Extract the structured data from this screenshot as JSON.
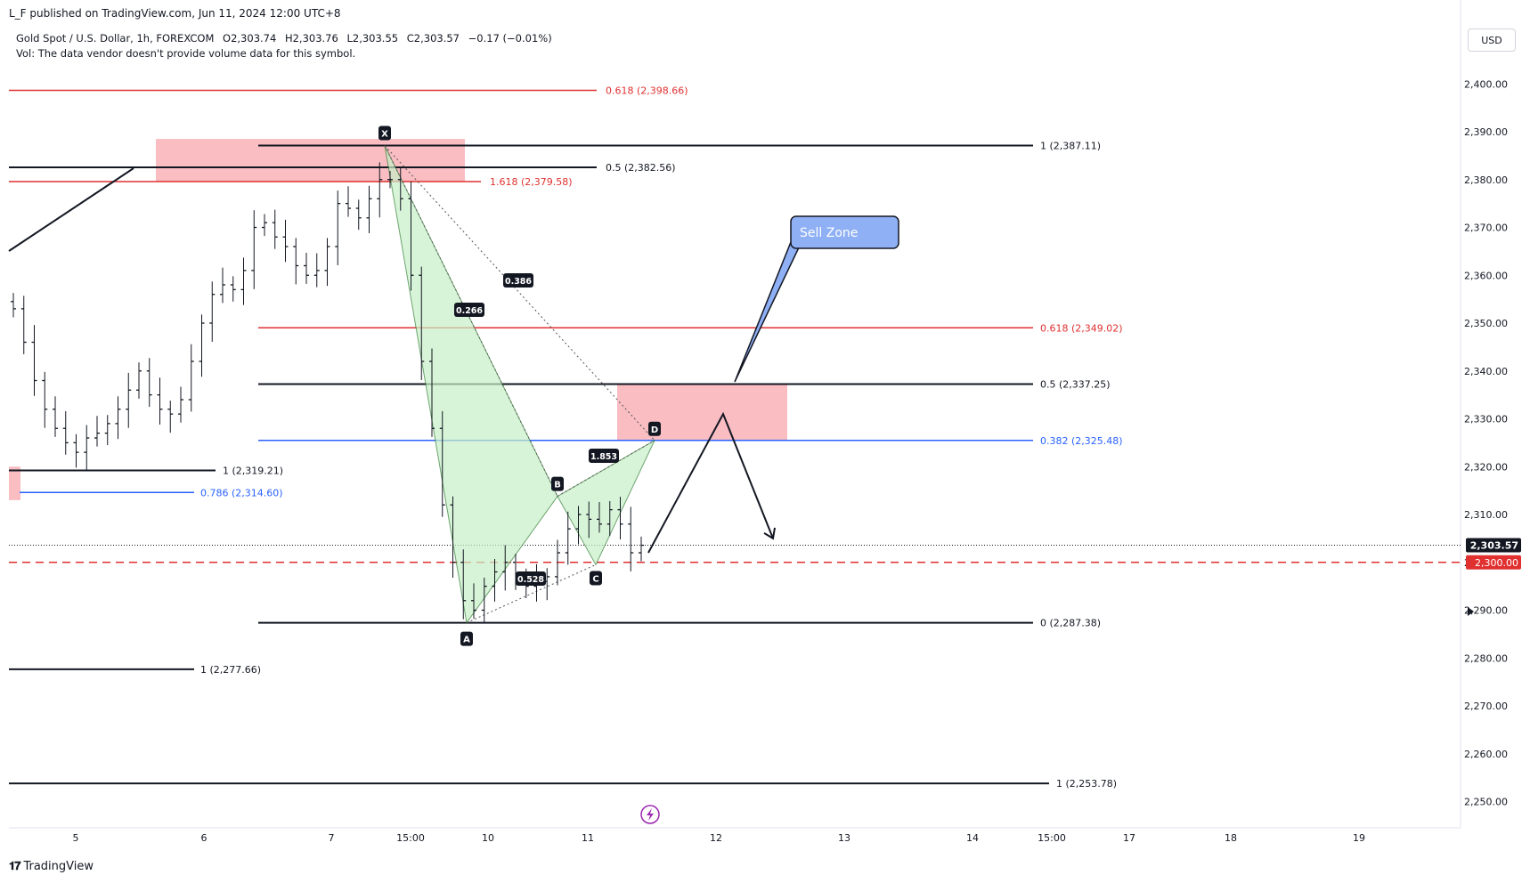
{
  "header": {
    "publisher": "L_F published on TradingView.com, Jun 11, 2024 12:00 UTC+8",
    "symbol": "Gold Spot / U.S. Dollar, 1h, FOREXCOM",
    "open": "O2,303.74",
    "high": "H2,303.76",
    "low": "L2,303.55",
    "close": "C2,303.57",
    "change": "−0.17 (−0.01%)",
    "vol_note": "Vol: The data vendor doesn't provide volume data for this symbol.",
    "currency": "USD"
  },
  "footer": {
    "logo_text": "TradingView"
  },
  "colors": {
    "up_down_candle": "#131722",
    "red_line": "#e03030",
    "blue_line": "#2962ff",
    "zone_fill": "#f7a7ad",
    "pattern_fill": "#c8f0c8",
    "sell_zone_fill": "#8fb0f5"
  },
  "chart_data": {
    "type": "candlestick",
    "symbol": "Gold Spot / U.S. Dollar",
    "interval": "1h",
    "ylim": [
      2246,
      2406
    ],
    "y_ticks": [
      2250,
      2260,
      2270,
      2280,
      2290,
      2300,
      2310,
      2320,
      2330,
      2340,
      2350,
      2360,
      2370,
      2380,
      2390,
      2400
    ],
    "y_tick_labels": [
      "2,250.00",
      "2,260.00",
      "2,270.00",
      "2,280.00",
      "2,290.00",
      "2,300.00",
      "2,310.00",
      "2,320.00",
      "2,330.00",
      "2,340.00",
      "2,350.00",
      "2,360.00",
      "2,370.00",
      "2,380.00",
      "2,390.00",
      "2,400.00"
    ],
    "x_tick_labels": [
      "5",
      "6",
      "7",
      "15:00",
      "10",
      "11",
      "12",
      "13",
      "14",
      "15:00",
      "17",
      "18",
      "19"
    ],
    "current_price": 2303.57,
    "current_price_label": "2,303.57",
    "alert_price": 2300.0,
    "alert_price_label": "2,300.00",
    "close_path": [
      2353,
      2346,
      2338,
      2332,
      2328,
      2325,
      2323,
      2326,
      2327,
      2329,
      2332,
      2336,
      2340,
      2335,
      2332,
      2331,
      2334,
      2342,
      2350,
      2356,
      2358,
      2357,
      2361,
      2370,
      2371,
      2368,
      2366,
      2362,
      2360,
      2361,
      2366,
      2375,
      2374,
      2372,
      2376,
      2380,
      2380,
      2376,
      2360,
      2342,
      2328,
      2312,
      2300,
      2292,
      2290,
      2295,
      2298,
      2300,
      2296,
      2295,
      2296,
      2297,
      2302,
      2307,
      2310,
      2309,
      2308,
      2311,
      2308,
      2302,
      2303.57
    ],
    "fib_levels": [
      {
        "label": "0.618 (2,398.66)",
        "value": 2398.66,
        "color": "red"
      },
      {
        "label": "1 (2,387.11)",
        "value": 2387.11,
        "color": "black"
      },
      {
        "label": "0.5 (2,382.56)",
        "value": 2382.56,
        "color": "black"
      },
      {
        "label": "1.618 (2,379.58)",
        "value": 2379.58,
        "color": "red"
      },
      {
        "label": "0.618 (2,349.02)",
        "value": 2349.02,
        "color": "red"
      },
      {
        "label": "0.5 (2,337.25)",
        "value": 2337.25,
        "color": "black"
      },
      {
        "label": "0.382 (2,325.48)",
        "value": 2325.48,
        "color": "blue"
      },
      {
        "label": "1 (2,319.21)",
        "value": 2319.21,
        "color": "black"
      },
      {
        "label": "0.786 (2,314.60)",
        "value": 2314.6,
        "color": "blue"
      },
      {
        "label": "0 (2,287.38)",
        "value": 2287.38,
        "color": "black"
      },
      {
        "label": "1 (2,277.66)",
        "value": 2277.66,
        "color": "black"
      },
      {
        "label": "1 (2,253.78)",
        "value": 2253.78,
        "color": "black"
      }
    ],
    "harmonic_pattern": {
      "points": [
        {
          "label": "X",
          "value": 2387.11
        },
        {
          "label": "A",
          "value": 2287.38
        },
        {
          "label": "B",
          "value": 2313.8
        },
        {
          "label": "C",
          "value": 2299.5
        },
        {
          "label": "D",
          "value": 2325.48
        }
      ],
      "ratios": [
        "0.266",
        "0.386",
        "0.528",
        "1.853"
      ]
    },
    "supply_zones": [
      {
        "from": 2379.58,
        "to": 2388.5
      },
      {
        "from": 2325.48,
        "to": 2337.25
      }
    ],
    "callout": "Sell Zone"
  }
}
